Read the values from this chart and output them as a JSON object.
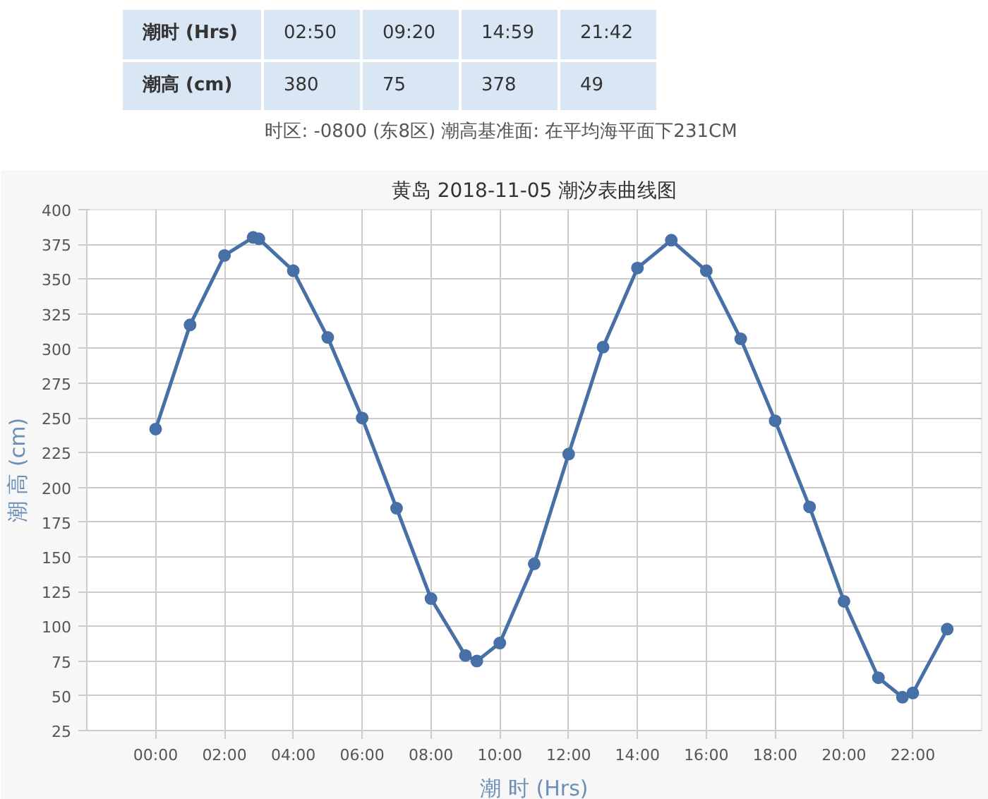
{
  "chart_data": {
    "type": "line",
    "title": "黄岛 2018-11-05 潮汐表曲线图",
    "xlabel": "潮 时 (Hrs)",
    "ylabel": "潮 高 (cm)",
    "annotations": [
      "潮时 (Hrs)",
      "02:50",
      "09:20",
      "14:59",
      "21:42",
      "潮高 (cm)",
      "380",
      "75",
      "378",
      "49",
      "时区: -0800 (东8区) 潮高基准面: 在平均海平面下231CM"
    ],
    "x": [
      0,
      1,
      2,
      2.833,
      3,
      4,
      5,
      6,
      7,
      8,
      9,
      9.333,
      10,
      11,
      12,
      13,
      14,
      14.983,
      16,
      17,
      18,
      19,
      20,
      21,
      21.7,
      22,
      23
    ],
    "series": [
      {
        "color": "#4670a6",
        "values": [
          242,
          317,
          367,
          380,
          379,
          356,
          308,
          250,
          185,
          120,
          79,
          75,
          88,
          145,
          224,
          301,
          358,
          378,
          356,
          307,
          248,
          186,
          118,
          63,
          49,
          52,
          98
        ]
      }
    ],
    "xlim": [
      -2,
      24
    ],
    "ylim": [
      25,
      400
    ],
    "xticks": [
      {
        "value": 0,
        "label": "00:00"
      },
      {
        "value": 2,
        "label": "02:00"
      },
      {
        "value": 4,
        "label": "04:00"
      },
      {
        "value": 6,
        "label": "06:00"
      },
      {
        "value": 8,
        "label": "08:00"
      },
      {
        "value": 10,
        "label": "10:00"
      },
      {
        "value": 12,
        "label": "12:00"
      },
      {
        "value": 14,
        "label": "14:00"
      },
      {
        "value": 16,
        "label": "16:00"
      },
      {
        "value": 18,
        "label": "18:00"
      },
      {
        "value": 20,
        "label": "20:00"
      },
      {
        "value": 22,
        "label": "22:00"
      }
    ],
    "yticks": [
      25,
      50,
      75,
      100,
      125,
      150,
      175,
      200,
      225,
      250,
      275,
      300,
      325,
      350,
      375,
      400
    ],
    "grid": true,
    "marker": "circle",
    "line_style": "solid"
  }
}
